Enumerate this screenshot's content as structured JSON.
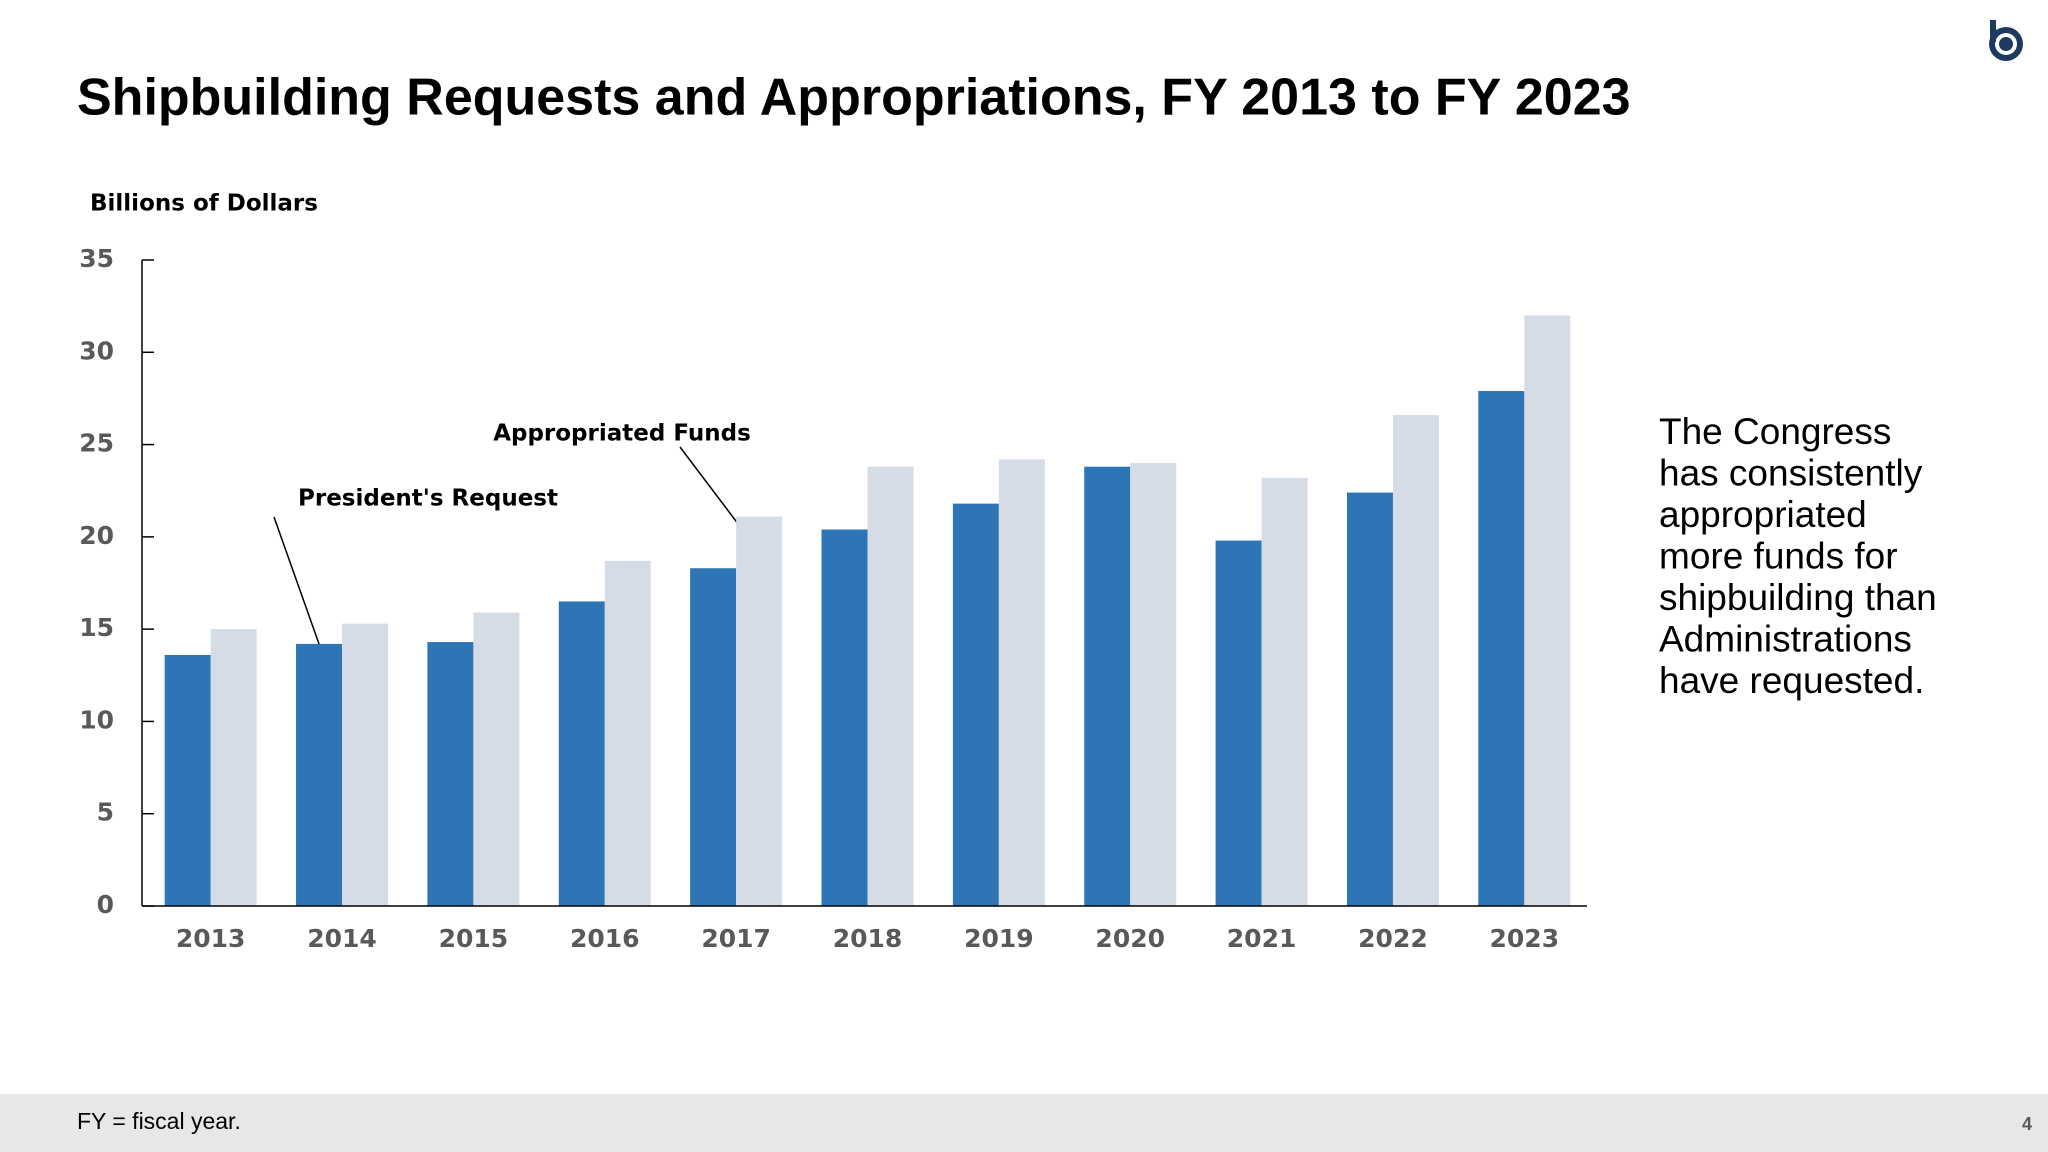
{
  "header": {
    "title": "Shipbuilding Requests and Appropriations, FY 2013 to FY 2023"
  },
  "chart_data": {
    "type": "bar",
    "y_label": "Billions of Dollars",
    "categories": [
      "2013",
      "2014",
      "2015",
      "2016",
      "2017",
      "2018",
      "2019",
      "2020",
      "2021",
      "2022",
      "2023"
    ],
    "series": [
      {
        "name": "President's Request",
        "color": "#2e75b6",
        "values": [
          13.6,
          14.2,
          14.3,
          16.5,
          18.3,
          20.4,
          21.8,
          23.8,
          19.8,
          22.4,
          27.9
        ]
      },
      {
        "name": "Appropriated Funds",
        "color": "#d6dce5",
        "values": [
          15.0,
          15.3,
          15.9,
          18.7,
          21.1,
          23.8,
          24.2,
          24.0,
          23.2,
          26.6,
          32.0
        ]
      }
    ],
    "ylim": [
      0,
      35
    ],
    "yticks": [
      0,
      5,
      10,
      15,
      20,
      25,
      30,
      35
    ],
    "grid": false
  },
  "side_text": [
    "The Congress",
    "has consistently",
    "appropriated",
    "more funds for",
    "shipbuilding than",
    "Administrations",
    "have requested."
  ],
  "footer": {
    "note": "FY = fiscal year.",
    "page": "4"
  }
}
